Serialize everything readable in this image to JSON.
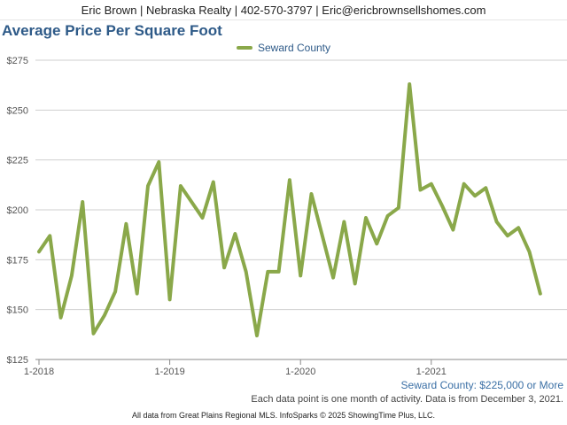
{
  "header": {
    "contact": "Eric Brown | Nebraska Realty | 402-570-3797 | Eric@ericbrownsellshomes.com"
  },
  "chart_data": {
    "type": "line",
    "title": "Average Price Per Square Foot",
    "xlabel": "",
    "ylabel": "",
    "ylim": [
      125,
      275
    ],
    "y_ticks": [
      "$125",
      "$150",
      "$175",
      "$200",
      "$225",
      "$250",
      "$275"
    ],
    "x_tick_labels": [
      "1-2018",
      "1-2019",
      "1-2020",
      "1-2021"
    ],
    "legend_position": "top-center",
    "grid": true,
    "color": "#8aa84a",
    "series": [
      {
        "name": "Seward County",
        "x": [
          "2018-01",
          "2018-02",
          "2018-03",
          "2018-04",
          "2018-05",
          "2018-06",
          "2018-07",
          "2018-08",
          "2018-09",
          "2018-10",
          "2018-11",
          "2018-12",
          "2019-01",
          "2019-02",
          "2019-03",
          "2019-04",
          "2019-05",
          "2019-06",
          "2019-07",
          "2019-08",
          "2019-09",
          "2019-10",
          "2019-11",
          "2019-12",
          "2020-01",
          "2020-02",
          "2020-03",
          "2020-04",
          "2020-05",
          "2020-06",
          "2020-07",
          "2020-08",
          "2020-09",
          "2020-10",
          "2020-11",
          "2020-12",
          "2021-01",
          "2021-02",
          "2021-03",
          "2021-04",
          "2021-05",
          "2021-06",
          "2021-07",
          "2021-08",
          "2021-09",
          "2021-10",
          "2021-11"
        ],
        "values": [
          179,
          187,
          146,
          167,
          204,
          138,
          147,
          159,
          193,
          158,
          212,
          224,
          155,
          212,
          204,
          196,
          214,
          171,
          188,
          169,
          137,
          169,
          169,
          215,
          167,
          208,
          187,
          166,
          194,
          163,
          196,
          183,
          197,
          201,
          263,
          210,
          213,
          202,
          190,
          213,
          207,
          211,
          194,
          187,
          191,
          179,
          158
        ]
      }
    ]
  },
  "filter_label": "Seward County: $225,000 or More",
  "note": "Each data point is one month of activity. Data is from December 3, 2021.",
  "footer": "All data from Great Plains Regional MLS. InfoSparks © 2025 ShowingTime Plus, LLC."
}
